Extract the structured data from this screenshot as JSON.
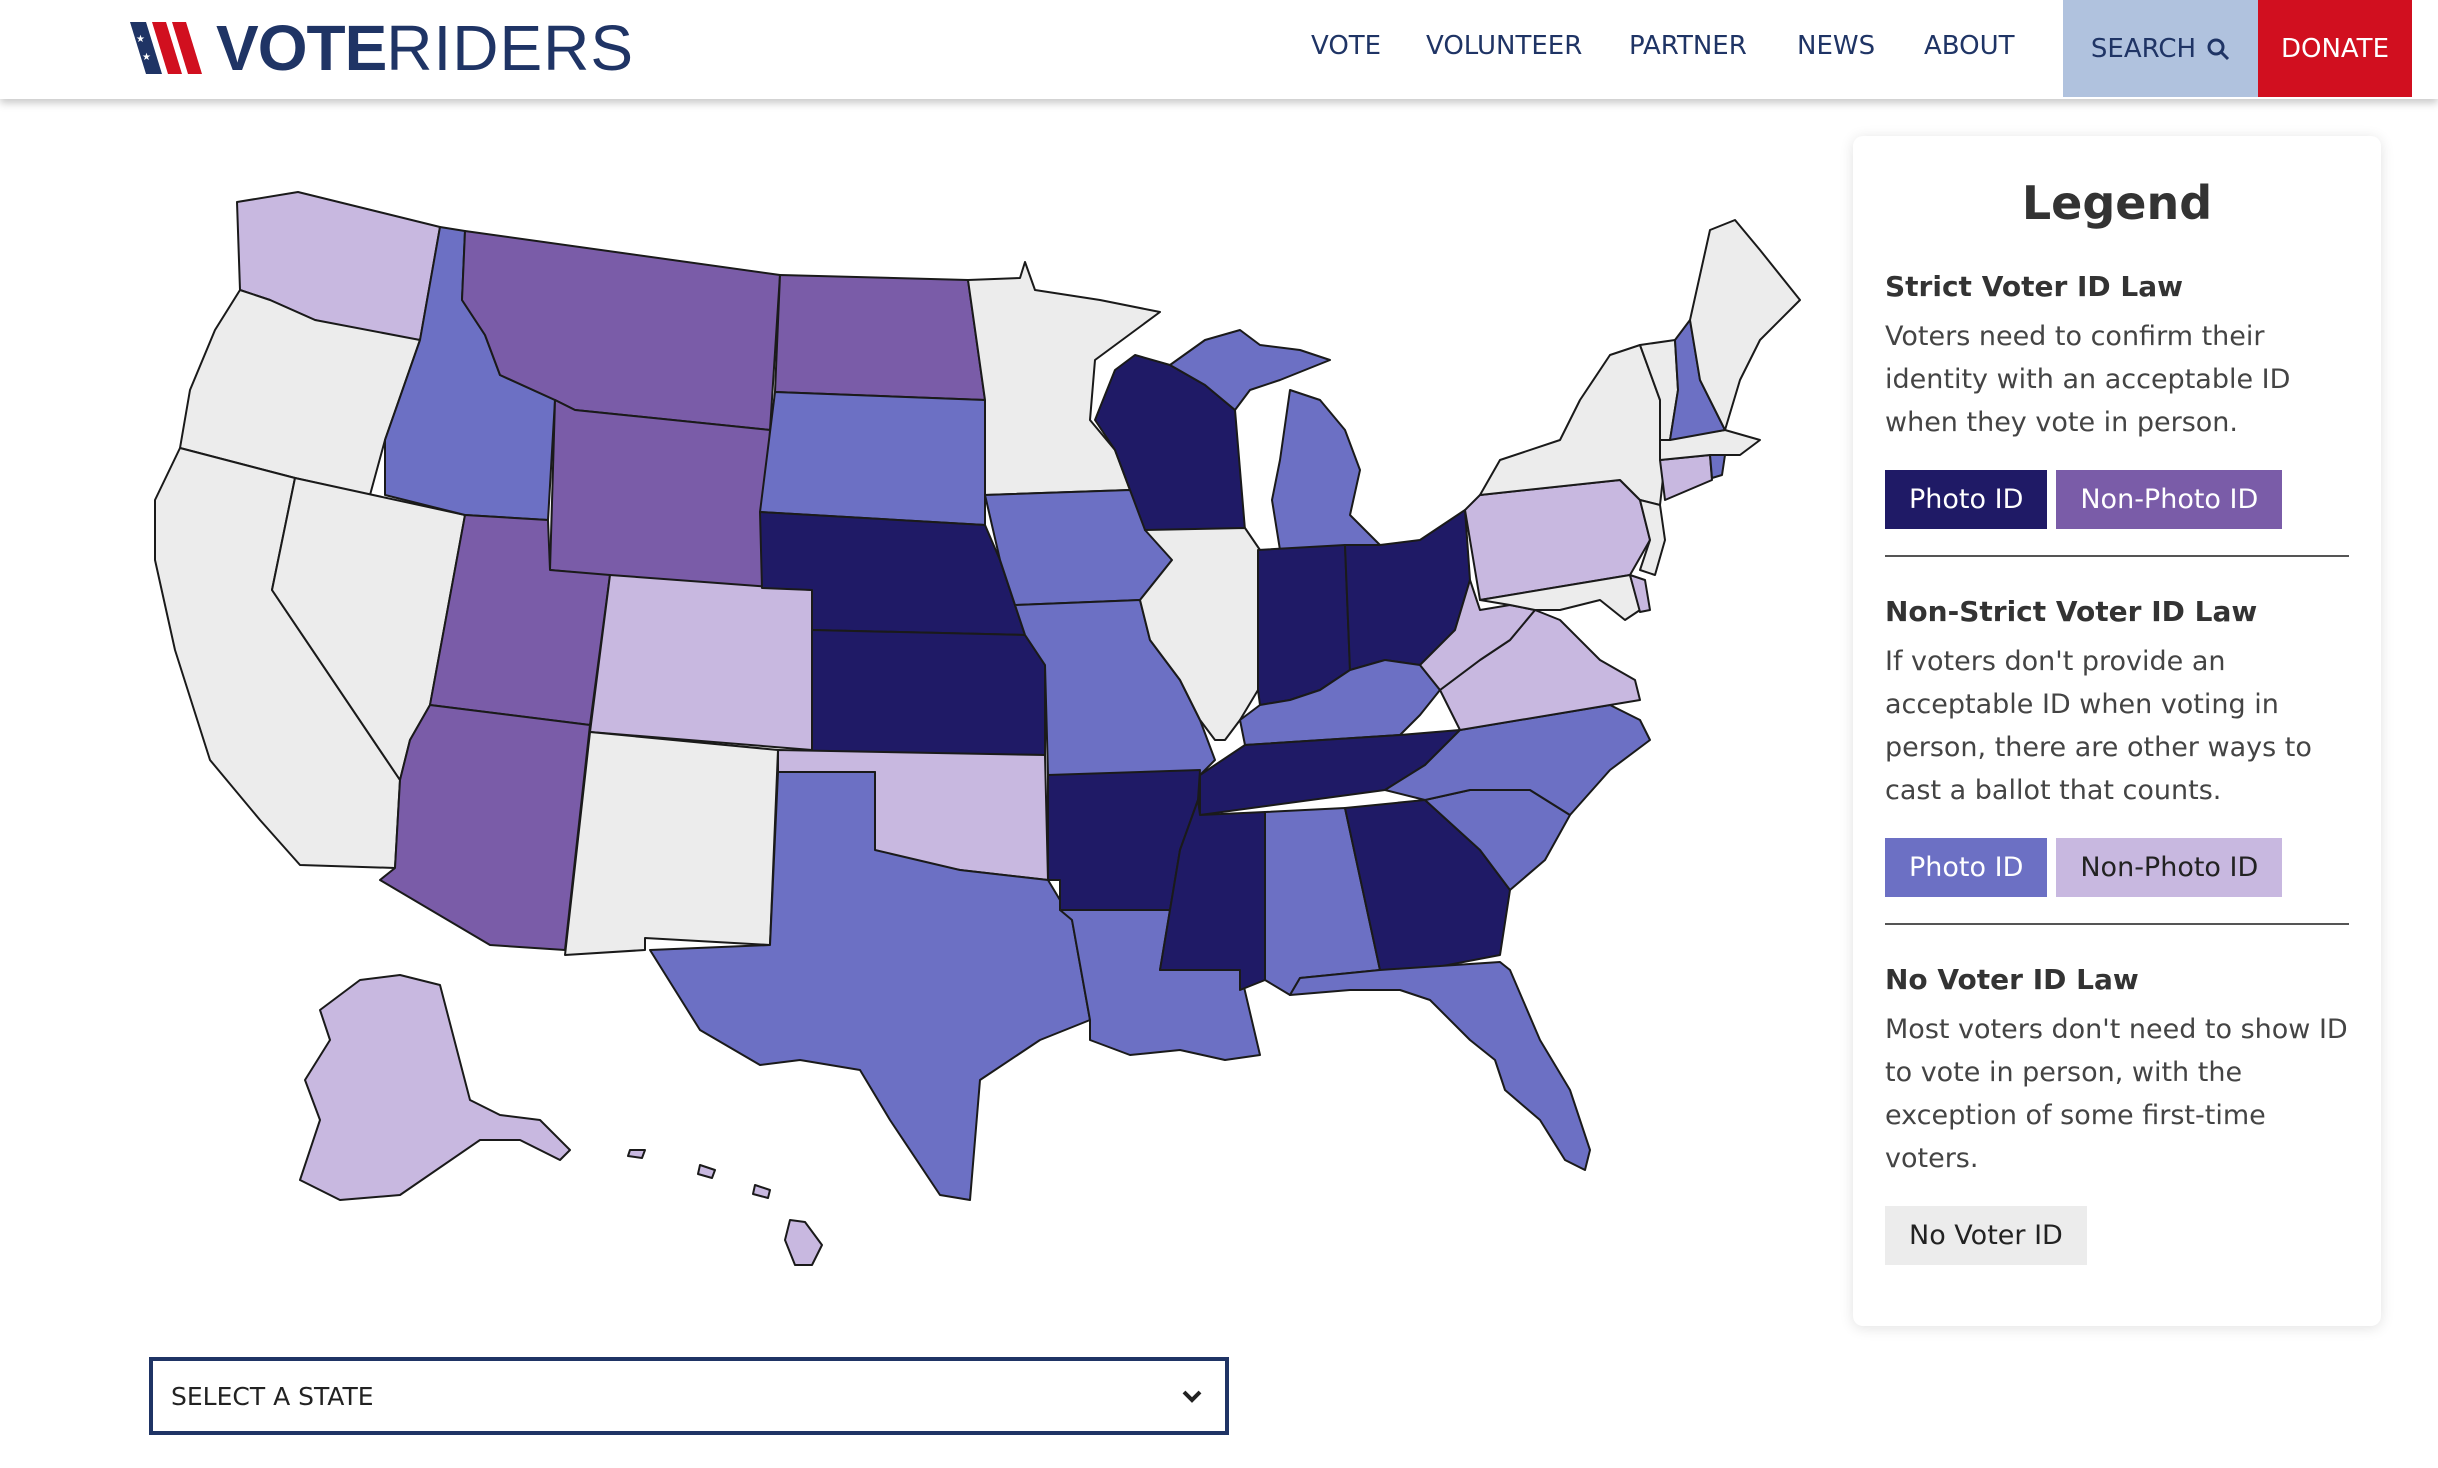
{
  "brand": {
    "logo_bold": "VOTE",
    "logo_light": "RIDERS"
  },
  "nav": {
    "items": [
      "VOTE",
      "VOLUNTEER",
      "PARTNER",
      "NEWS",
      "ABOUT"
    ],
    "search_label": "SEARCH",
    "donate_label": "DONATE"
  },
  "legend": {
    "title": "Legend",
    "sections": [
      {
        "heading": "Strict Voter ID Law",
        "text": "Voters need to confirm their identity with an acceptable ID when they vote in person.",
        "buttons": [
          "Photo ID",
          "Non-Photo ID"
        ]
      },
      {
        "heading": "Non-Strict Voter ID Law",
        "text": "If voters don't provide an acceptable ID when voting in person, there are other ways to cast a ballot that counts.",
        "buttons": [
          "Photo ID",
          "Non-Photo ID"
        ]
      },
      {
        "heading": "No Voter ID Law",
        "text": "Most voters don't need to show ID to vote in person, with the exception of some first-time voters.",
        "buttons": [
          "No Voter ID"
        ]
      }
    ]
  },
  "colors": {
    "strict_photo": "#1f1a66",
    "strict_nonphoto": "#7a5ca8",
    "nonstrict_photo": "#6c70c4",
    "nonstrict_nonphoto": "#c8b8e0",
    "no_id": "#ececec",
    "brand_navy": "#1f3465",
    "donate_red": "#d10f1f",
    "search_bg": "#b0c2de"
  },
  "select": {
    "label": "SELECT A STATE"
  }
}
